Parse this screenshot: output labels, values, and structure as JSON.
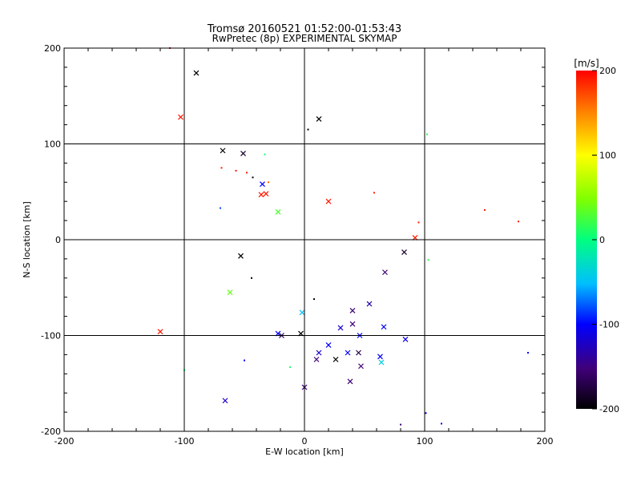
{
  "chart_data": {
    "type": "scatter",
    "title": "Tromsø 20160521 01:52:00-01:53:43",
    "subtitle": "RwPretec (8p) EXPERIMENTAL SKYMAP",
    "xlabel": "E-W location [km]",
    "ylabel": "N-S location [km]",
    "xlim": [
      -200,
      200
    ],
    "ylim": [
      -200,
      200
    ],
    "xticks": [
      "-200",
      "-100",
      "0",
      "100",
      "200"
    ],
    "yticks": [
      "-200",
      "-100",
      "0",
      "100",
      "200"
    ],
    "grid": true,
    "colorbar": {
      "label": "[m/s]",
      "range": [
        -200,
        200
      ],
      "ticks": [
        "200",
        "100",
        "0",
        "-100",
        "-200"
      ]
    },
    "points": [
      {
        "x": -112,
        "y": 200,
        "v": 200,
        "m": "dot"
      },
      {
        "x": -90,
        "y": 174,
        "v": -200,
        "m": "x"
      },
      {
        "x": -103,
        "y": 128,
        "v": 190,
        "m": "x"
      },
      {
        "x": 12,
        "y": 126,
        "v": -200,
        "m": "x"
      },
      {
        "x": 3,
        "y": 115,
        "v": -200,
        "m": "dot"
      },
      {
        "x": 102,
        "y": 110,
        "v": 20,
        "m": "dot"
      },
      {
        "x": -68,
        "y": 93,
        "v": -200,
        "m": "x"
      },
      {
        "x": -51,
        "y": 90,
        "v": -180,
        "m": "x"
      },
      {
        "x": -33,
        "y": 89,
        "v": 10,
        "m": "dot"
      },
      {
        "x": -69,
        "y": 75,
        "v": 190,
        "m": "dot"
      },
      {
        "x": -57,
        "y": 72,
        "v": 190,
        "m": "dot"
      },
      {
        "x": -48,
        "y": 70,
        "v": 190,
        "m": "dot"
      },
      {
        "x": -43,
        "y": 65,
        "v": -200,
        "m": "dot"
      },
      {
        "x": -30,
        "y": 60,
        "v": 160,
        "m": "dot"
      },
      {
        "x": -35,
        "y": 58,
        "v": -100,
        "m": "x"
      },
      {
        "x": -36,
        "y": 47,
        "v": 190,
        "m": "x"
      },
      {
        "x": -32,
        "y": 48,
        "v": 190,
        "m": "x"
      },
      {
        "x": 58,
        "y": 49,
        "v": 190,
        "m": "dot"
      },
      {
        "x": 20,
        "y": 40,
        "v": 190,
        "m": "x"
      },
      {
        "x": -70,
        "y": 33,
        "v": -80,
        "m": "dot"
      },
      {
        "x": -22,
        "y": 29,
        "v": 30,
        "m": "x"
      },
      {
        "x": 95,
        "y": 18,
        "v": 190,
        "m": "dot"
      },
      {
        "x": 150,
        "y": 31,
        "v": 190,
        "m": "dot"
      },
      {
        "x": 178,
        "y": 19,
        "v": 190,
        "m": "dot"
      },
      {
        "x": 92,
        "y": 2,
        "v": 190,
        "m": "x"
      },
      {
        "x": 83,
        "y": -13,
        "v": -180,
        "m": "x"
      },
      {
        "x": 103,
        "y": -21,
        "v": 20,
        "m": "dot"
      },
      {
        "x": -53,
        "y": -17,
        "v": -200,
        "m": "x"
      },
      {
        "x": 67,
        "y": -34,
        "v": -150,
        "m": "x"
      },
      {
        "x": -44,
        "y": -40,
        "v": -200,
        "m": "dot"
      },
      {
        "x": -62,
        "y": -55,
        "v": 40,
        "m": "x"
      },
      {
        "x": 8,
        "y": -62,
        "v": -200,
        "m": "dot"
      },
      {
        "x": 54,
        "y": -67,
        "v": -130,
        "m": "x"
      },
      {
        "x": -2,
        "y": -76,
        "v": -50,
        "m": "x"
      },
      {
        "x": 40,
        "y": -74,
        "v": -150,
        "m": "x"
      },
      {
        "x": -120,
        "y": -96,
        "v": 190,
        "m": "x"
      },
      {
        "x": -22,
        "y": -98,
        "v": -100,
        "m": "x"
      },
      {
        "x": -19,
        "y": -100,
        "v": -170,
        "m": "x"
      },
      {
        "x": -3,
        "y": -98,
        "v": -200,
        "m": "x"
      },
      {
        "x": 66,
        "y": -91,
        "v": -100,
        "m": "x"
      },
      {
        "x": 84,
        "y": -104,
        "v": -110,
        "m": "x"
      },
      {
        "x": 40,
        "y": -88,
        "v": -150,
        "m": "x"
      },
      {
        "x": 30,
        "y": -92,
        "v": -120,
        "m": "x"
      },
      {
        "x": 46,
        "y": -100,
        "v": -100,
        "m": "x"
      },
      {
        "x": 20,
        "y": -110,
        "v": -100,
        "m": "x"
      },
      {
        "x": 12,
        "y": -118,
        "v": -120,
        "m": "x"
      },
      {
        "x": 36,
        "y": -118,
        "v": -100,
        "m": "x"
      },
      {
        "x": 45,
        "y": -118,
        "v": -170,
        "m": "x"
      },
      {
        "x": 26,
        "y": -125,
        "v": -200,
        "m": "x"
      },
      {
        "x": 10,
        "y": -125,
        "v": -150,
        "m": "x"
      },
      {
        "x": 63,
        "y": -122,
        "v": -100,
        "m": "x"
      },
      {
        "x": 64,
        "y": -128,
        "v": -40,
        "m": "x"
      },
      {
        "x": 47,
        "y": -132,
        "v": -150,
        "m": "x"
      },
      {
        "x": 38,
        "y": -148,
        "v": -150,
        "m": "x"
      },
      {
        "x": -100,
        "y": -136,
        "v": 0,
        "m": "dot"
      },
      {
        "x": -50,
        "y": -126,
        "v": -100,
        "m": "dot"
      },
      {
        "x": -12,
        "y": -133,
        "v": 10,
        "m": "dot"
      },
      {
        "x": 0,
        "y": -154,
        "v": -150,
        "m": "x"
      },
      {
        "x": -66,
        "y": -168,
        "v": -120,
        "m": "x"
      },
      {
        "x": 186,
        "y": -118,
        "v": -100,
        "m": "dot"
      },
      {
        "x": 101,
        "y": -181,
        "v": -100,
        "m": "dot"
      },
      {
        "x": 114,
        "y": -192,
        "v": -100,
        "m": "dot"
      },
      {
        "x": 80,
        "y": -193,
        "v": -150,
        "m": "dot"
      }
    ]
  }
}
